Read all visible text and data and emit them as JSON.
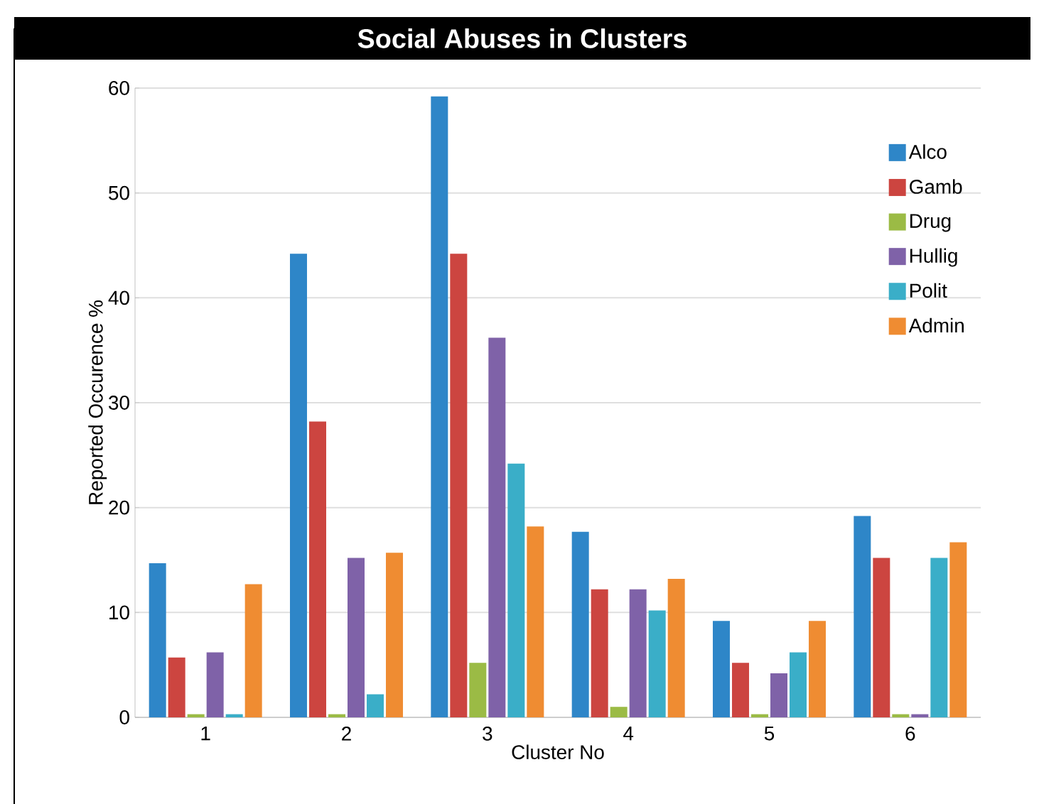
{
  "chart_data": {
    "type": "bar",
    "title": "Social Abuses in Clusters",
    "xlabel": "Cluster No",
    "ylabel": "Reported Occurence %",
    "categories": [
      "1",
      "2",
      "3",
      "4",
      "5",
      "6"
    ],
    "series": [
      {
        "name": "Alco",
        "color": "#2e86c8",
        "values": [
          14.7,
          44.2,
          59.2,
          17.7,
          9.2,
          19.2
        ]
      },
      {
        "name": "Gamb",
        "color": "#cc4540",
        "values": [
          5.7,
          28.2,
          44.2,
          12.2,
          5.2,
          15.2
        ]
      },
      {
        "name": "Drug",
        "color": "#9bbb45",
        "values": [
          0.3,
          0.3,
          5.2,
          1.0,
          0.3,
          0.3
        ]
      },
      {
        "name": "Hullig",
        "color": "#7f62a8",
        "values": [
          6.2,
          15.2,
          36.2,
          12.2,
          4.2,
          0.3
        ]
      },
      {
        "name": "Polit",
        "color": "#3aaec8",
        "values": [
          0.3,
          2.2,
          24.2,
          10.2,
          6.2,
          15.2
        ]
      },
      {
        "name": "Admin",
        "color": "#ef8c32",
        "values": [
          12.7,
          15.7,
          18.2,
          13.2,
          9.2,
          16.7
        ]
      }
    ],
    "ylim": [
      0,
      60
    ],
    "yticks": [
      0,
      10,
      20,
      30,
      40,
      50,
      60
    ],
    "grid": "y",
    "legend": "top right"
  }
}
